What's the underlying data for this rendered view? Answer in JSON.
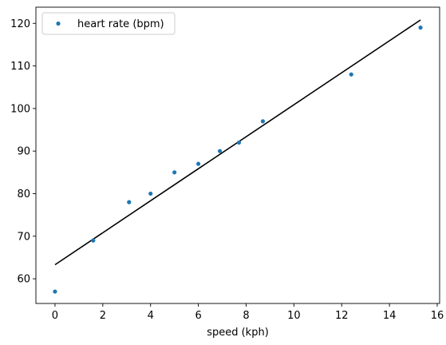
{
  "chart_data": {
    "type": "scatter",
    "xlabel": "speed (kph)",
    "ylabel": "",
    "xlim": [
      -0.8,
      16.1
    ],
    "ylim": [
      54.2,
      123.8
    ],
    "xticks": [
      0,
      2,
      4,
      6,
      8,
      10,
      12,
      14,
      16
    ],
    "yticks": [
      60,
      70,
      80,
      90,
      100,
      110,
      120
    ],
    "xtick_labels": [
      "0",
      "2",
      "4",
      "6",
      "8",
      "10",
      "12",
      "14",
      "16"
    ],
    "ytick_labels": [
      "60",
      "70",
      "80",
      "90",
      "100",
      "110",
      "120"
    ],
    "grid": false,
    "legend_position": "top-left",
    "series": [
      {
        "name": "heart rate (bpm)",
        "type": "scatter",
        "color": "#1f77b4",
        "x": [
          0,
          1.6,
          3.1,
          4.0,
          5.0,
          6.0,
          6.9,
          7.7,
          8.7,
          12.4,
          15.3
        ],
        "y": [
          57,
          69,
          78,
          80,
          85,
          87,
          90,
          92,
          97,
          108,
          119
        ]
      },
      {
        "type": "line",
        "color": "#000000",
        "x": [
          0,
          15.3
        ],
        "y": [
          63.3,
          120.8
        ]
      }
    ]
  }
}
